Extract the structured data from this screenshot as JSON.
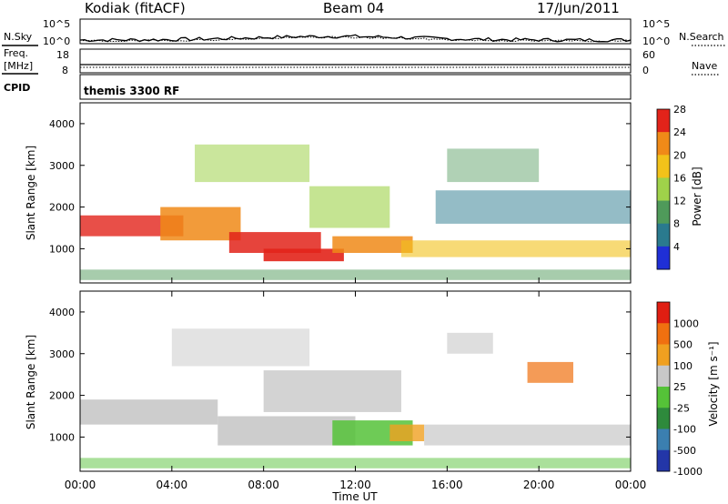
{
  "header": {
    "station": "Kodiak (fitACF)",
    "beam": "Beam 04",
    "date": "17/Jun/2011"
  },
  "noise_panel": {
    "left_label": "N.Sky",
    "right_label": "N.Search",
    "left_ticks": [
      "10^5",
      "10^0"
    ],
    "right_ticks": [
      "10^5",
      "10^0"
    ]
  },
  "freq_panel": {
    "left_label_1": "Freq.",
    "left_label_2": "[MHz]",
    "right_label": "Nave",
    "left_ticks": [
      "18",
      "8"
    ],
    "right_ticks": [
      "60",
      "0"
    ]
  },
  "cpid_panel": {
    "label": "CPID",
    "program": "themis 3300 RF"
  },
  "chart_data": [
    {
      "type": "heatmap",
      "panel": "power",
      "ylabel": "Slant Range [km]",
      "yticks": [
        "1000",
        "2000",
        "3000",
        "4000"
      ],
      "ylim": [
        180,
        4500
      ],
      "xlim_hours": [
        0,
        24
      ],
      "colorbar_label": "Power [dB]",
      "colorbar_ticks": [
        "4",
        "8",
        "12",
        "16",
        "20",
        "24",
        "28"
      ],
      "colorbar_colors": [
        "#1f2fd6",
        "#2a7a8e",
        "#4f9a5a",
        "#9fd24a",
        "#f2c21a",
        "#f08a18",
        "#e2231a"
      ],
      "grid": false
    },
    {
      "type": "heatmap",
      "panel": "velocity",
      "ylabel": "Slant Range [km]",
      "yticks": [
        "1000",
        "2000",
        "3000",
        "4000"
      ],
      "ylim": [
        180,
        4500
      ],
      "xlim_hours": [
        0,
        24
      ],
      "colorbar_label": "Velocity [m s⁻¹]",
      "colorbar_ticks": [
        "1000",
        "500",
        "100",
        "25",
        "-25",
        "-100",
        "-500",
        "-1000"
      ],
      "colorbar_colors": [
        "#2336a8",
        "#3b7fb0",
        "#2e8a3c",
        "#55c238",
        "#c8c8c8",
        "#f0a020",
        "#f07010",
        "#e01e12"
      ],
      "grid": false
    }
  ],
  "xaxis": {
    "ticks": [
      "00:00",
      "04:00",
      "08:00",
      "12:00",
      "16:00",
      "20:00",
      "00:00"
    ],
    "label": "Time UT"
  }
}
